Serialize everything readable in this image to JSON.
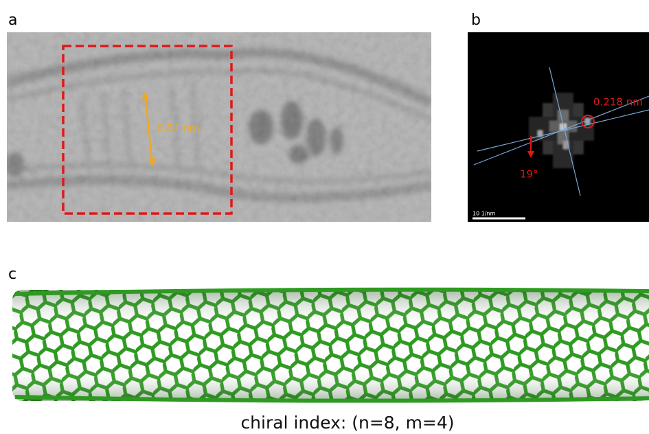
{
  "panels": [
    {
      "label": "a",
      "annotation": "0.84 nm"
    },
    {
      "label": "b",
      "annotations": [
        "0.218 nm",
        "19°"
      ],
      "scale_bar": "10 1/nm"
    },
    {
      "label": "c",
      "caption": "chiral index: (n=8, m=4)"
    }
  ]
}
